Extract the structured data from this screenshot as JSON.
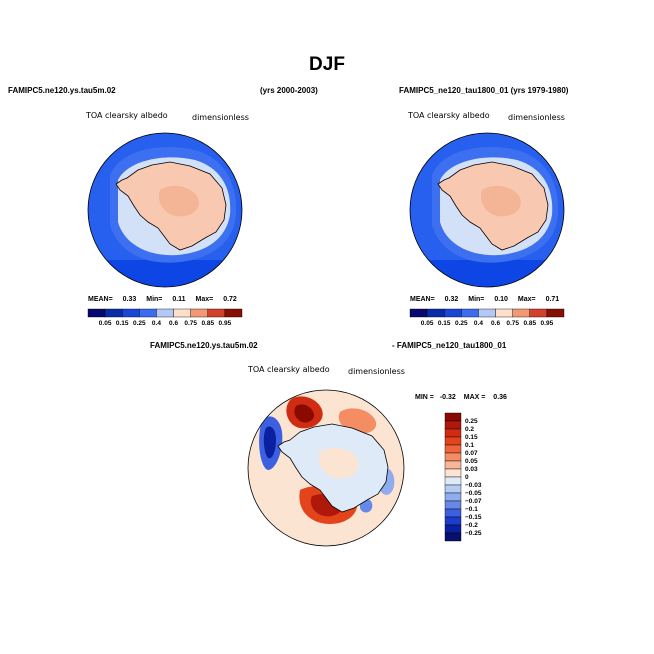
{
  "figure_title": "DJF",
  "panels": {
    "left": {
      "case_name": "FAMIPC5.ne120.ys.tau5m.02",
      "years": "(yrs 2000-2003)",
      "variable": "TOA clearsky albedo",
      "units": "dimensionless",
      "stats": {
        "mean_label": "MEAN=",
        "mean": "0.33",
        "min_label": "Min=",
        "min": "0.11",
        "max_label": "Max=",
        "max": "0.72"
      }
    },
    "right": {
      "case_name": "FAMIPC5_ne120_tau1800_01 (yrs 1979-1980)",
      "variable": "TOA clearsky albedo",
      "units": "dimensionless",
      "stats": {
        "mean_label": "MEAN=",
        "mean": "0.32",
        "min_label": "Min=",
        "min": "0.10",
        "max_label": "Max=",
        "max": "0.71"
      }
    },
    "diff": {
      "title_a": "FAMIPC5.ne120.ys.tau5m.02",
      "title_b": "- FAMIPC5_ne120_tau1800_01",
      "variable": "TOA clearsky albedo",
      "units": "dimensionless",
      "stats": {
        "min_label": "MIN =",
        "min": "-0.32",
        "max_label": "MAX =",
        "max": "0.36"
      }
    }
  },
  "chart_data": [
    {
      "type": "heatmap",
      "projection": "south-polar-stereographic",
      "title": "FAMIPC5.ne120.ys.tau5m.02 (yrs 2000-2003)",
      "variable": "TOA clearsky albedo",
      "units": "dimensionless",
      "mean": 0.33,
      "min": 0.11,
      "max": 0.72,
      "levels": [
        0.05,
        0.15,
        0.25,
        0.4,
        0.6,
        0.75,
        0.85,
        0.95
      ],
      "level_labels": [
        "0.05",
        "0.15",
        "0.25",
        "0.4",
        "0.6",
        "0.75",
        "0.85",
        "0.95"
      ]
    },
    {
      "type": "heatmap",
      "projection": "south-polar-stereographic",
      "title": "FAMIPC5_ne120_tau1800_01 (yrs 1979-1980)",
      "variable": "TOA clearsky albedo",
      "units": "dimensionless",
      "mean": 0.32,
      "min": 0.1,
      "max": 0.71,
      "levels": [
        0.05,
        0.15,
        0.25,
        0.4,
        0.6,
        0.75,
        0.85,
        0.95
      ],
      "level_labels": [
        "0.05",
        "0.15",
        "0.25",
        "0.4",
        "0.6",
        "0.75",
        "0.85",
        "0.95"
      ]
    },
    {
      "type": "heatmap",
      "projection": "south-polar-stereographic",
      "title": "FAMIPC5.ne120.ys.tau5m.02 - FAMIPC5_ne120_tau1800_01",
      "variable": "TOA clearsky albedo",
      "units": "dimensionless",
      "min": -0.32,
      "max": 0.36,
      "levels": [
        0.25,
        0.2,
        0.15,
        0.1,
        0.07,
        0.05,
        0.03,
        0,
        -0.03,
        -0.05,
        -0.07,
        -0.1,
        -0.15,
        -0.2,
        -0.25
      ],
      "level_labels": [
        "0.25",
        "0.2",
        "0.15",
        "0.1",
        "0.07",
        "0.05",
        "0.03",
        "0",
        "−0.03",
        "−0.05",
        "−0.07",
        "−0.1",
        "−0.15",
        "−0.2",
        "−0.25"
      ]
    }
  ],
  "colors": {
    "abs_scale": [
      "#08086e",
      "#0a2ca8",
      "#1846d8",
      "#3c6cf0",
      "#7898f8",
      "#b4c8f8",
      "#e4ecfc",
      "#fce0cc",
      "#fcc0a0",
      "#f49874",
      "#e86c48",
      "#d4402c",
      "#b01c10",
      "#861004"
    ],
    "diff_scale": [
      "#8a0a02",
      "#b0180c",
      "#d02c14",
      "#e4441c",
      "#f0643c",
      "#f48c64",
      "#f8b898",
      "#fce4d2",
      "#deeaf8",
      "#b4cbf4",
      "#8eacee",
      "#6688e8",
      "#3c60e0",
      "#1c3ccc",
      "#0a20a0",
      "#06106e"
    ],
    "ocean": "#0e46e6",
    "ice_edge": "#2a62ee",
    "sea_ice": "#d2e0f8",
    "land": "#f8c8b0",
    "plateau": "#f4b496",
    "diff_background": "#fce4d2"
  }
}
